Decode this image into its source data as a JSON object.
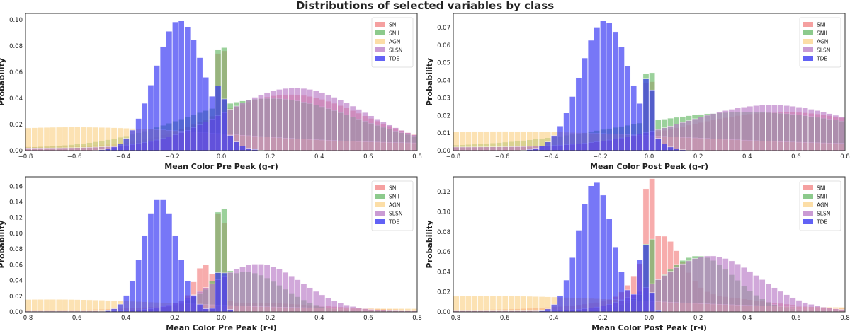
{
  "figure_title": "Distributions of selected variables by class",
  "chart_data": [
    {
      "type": "bar",
      "title": "",
      "xlabel": "Mean Color Pre Peak (g-r)",
      "ylabel": "Probability",
      "xlim": [
        -0.8,
        0.8
      ],
      "ylim": [
        0,
        0.105
      ],
      "xticks": [
        "−0.8",
        "−0.6",
        "−0.4",
        "−0.2",
        "0.0",
        "0.2",
        "0.4",
        "0.6",
        "0.8"
      ],
      "yticks": [
        "0.00",
        "0.02",
        "0.04",
        "0.06",
        "0.08",
        "0.10"
      ],
      "legend_position": "top-right",
      "series": [
        {
          "name": "SNI",
          "color": "#f28080",
          "peaks": [
            [
              0.0,
              0.08,
              0.012
            ],
            [
              0.28,
              0.04,
              0.3
            ]
          ],
          "base": 0.003
        },
        {
          "name": "SNII",
          "color": "#66b866",
          "peaks": [
            [
              0.0,
              0.096,
              0.01
            ],
            [
              0.2,
              0.038,
              0.35
            ]
          ],
          "base": 0.002
        },
        {
          "name": "AGN",
          "color": "#fbd38a",
          "peaks": [
            [
              -0.6,
              0.013,
              0.6
            ]
          ],
          "base": 0.005
        },
        {
          "name": "SLSN",
          "color": "#b87ac6",
          "peaks": [
            [
              0.3,
              0.046,
              0.28
            ]
          ],
          "base": 0.002
        },
        {
          "name": "TDE",
          "color": "#2e2ef2",
          "peaks": [
            [
              -0.17,
              0.1,
              0.1
            ],
            [
              0.0,
              0.045,
              0.01
            ]
          ],
          "base": 0.0
        }
      ]
    },
    {
      "type": "bar",
      "title": "",
      "xlabel": "Mean Color Post Peak (g-r)",
      "ylabel": "Probability",
      "xlim": [
        -0.8,
        0.8
      ],
      "ylim": [
        0,
        0.078
      ],
      "xticks": [
        "−0.8",
        "−0.6",
        "−0.4",
        "−0.2",
        "0.0",
        "0.2",
        "0.4",
        "0.6",
        "0.8"
      ],
      "yticks": [
        "0.00",
        "0.01",
        "0.02",
        "0.03",
        "0.04",
        "0.05",
        "0.06",
        "0.07"
      ],
      "legend_position": "top-right",
      "series": [
        {
          "name": "SNI",
          "color": "#f28080",
          "peaks": [
            [
              0.0,
              0.05,
              0.012
            ],
            [
              0.55,
              0.02,
              0.4
            ]
          ],
          "base": 0.002
        },
        {
          "name": "SNII",
          "color": "#66b866",
          "peaks": [
            [
              0.0,
              0.06,
              0.01
            ],
            [
              0.4,
              0.02,
              0.5
            ]
          ],
          "base": 0.002
        },
        {
          "name": "AGN",
          "color": "#fbd38a",
          "peaks": [
            [
              -0.6,
              0.008,
              0.7
            ]
          ],
          "base": 0.003
        },
        {
          "name": "SLSN",
          "color": "#b87ac6",
          "peaks": [
            [
              0.5,
              0.024,
              0.35
            ]
          ],
          "base": 0.002
        },
        {
          "name": "TDE",
          "color": "#2e2ef2",
          "peaks": [
            [
              -0.18,
              0.074,
              0.1
            ],
            [
              0.0,
              0.05,
              0.01
            ]
          ],
          "base": 0.0
        }
      ]
    },
    {
      "type": "bar",
      "title": "",
      "xlabel": "Mean Color Pre Peak (r-i)",
      "ylabel": "Probability",
      "xlim": [
        -0.8,
        0.8
      ],
      "ylim": [
        0,
        0.172
      ],
      "xticks": [
        "−0.8",
        "−0.6",
        "−0.4",
        "−0.2",
        "0.0",
        "0.2",
        "0.4",
        "0.6",
        "0.8"
      ],
      "yticks": [
        "0.00",
        "0.02",
        "0.04",
        "0.06",
        "0.08",
        "0.10",
        "0.12",
        "0.14",
        "0.16"
      ],
      "legend_position": "top-right",
      "series": [
        {
          "name": "SNI",
          "color": "#f28080",
          "peaks": [
            [
              0.0,
              0.165,
              0.012
            ],
            [
              -0.07,
              0.05,
              0.04
            ],
            [
              0.1,
              0.01,
              0.3
            ]
          ],
          "base": 0.002
        },
        {
          "name": "SNII",
          "color": "#66b866",
          "peaks": [
            [
              0.0,
              0.125,
              0.015
            ],
            [
              0.1,
              0.05,
              0.15
            ]
          ],
          "base": 0.001
        },
        {
          "name": "AGN",
          "color": "#fbd38a",
          "peaks": [
            [
              -0.7,
              0.012,
              0.5
            ]
          ],
          "base": 0.004
        },
        {
          "name": "SLSN",
          "color": "#b87ac6",
          "peaks": [
            [
              0.15,
              0.06,
              0.18
            ]
          ],
          "base": 0.001
        },
        {
          "name": "TDE",
          "color": "#2e2ef2",
          "peaks": [
            [
              -0.25,
              0.145,
              0.07
            ],
            [
              0.0,
              0.07,
              0.015
            ]
          ],
          "base": 0.0
        }
      ]
    },
    {
      "type": "bar",
      "title": "",
      "xlabel": "Mean Color Post Peak (r-i)",
      "ylabel": "Probability",
      "xlim": [
        -0.8,
        0.8
      ],
      "ylim": [
        0,
        0.135
      ],
      "xticks": [
        "−0.8",
        "−0.6",
        "−0.4",
        "−0.2",
        "0.0",
        "0.2",
        "0.4",
        "0.6",
        "0.8"
      ],
      "yticks": [
        "0.00",
        "0.02",
        "0.04",
        "0.06",
        "0.08",
        "0.10",
        "0.12"
      ],
      "legend_position": "top-right",
      "series": [
        {
          "name": "SNI",
          "color": "#f28080",
          "peaks": [
            [
              0.0,
              0.11,
              0.012
            ],
            [
              0.05,
              0.06,
              0.08
            ],
            [
              0.15,
              0.015,
              0.3
            ]
          ],
          "base": 0.002
        },
        {
          "name": "SNII",
          "color": "#66b866",
          "peaks": [
            [
              0.0,
              0.08,
              0.012
            ],
            [
              0.2,
              0.055,
              0.15
            ]
          ],
          "base": 0.001
        },
        {
          "name": "AGN",
          "color": "#fbd38a",
          "peaks": [
            [
              -0.65,
              0.012,
              0.6
            ]
          ],
          "base": 0.004
        },
        {
          "name": "SLSN",
          "color": "#b87ac6",
          "peaks": [
            [
              0.25,
              0.055,
              0.2
            ]
          ],
          "base": 0.001
        },
        {
          "name": "TDE",
          "color": "#2e2ef2",
          "peaks": [
            [
              -0.22,
              0.13,
              0.07
            ],
            [
              -0.02,
              0.07,
              0.02
            ]
          ],
          "base": 0.0
        }
      ]
    }
  ]
}
